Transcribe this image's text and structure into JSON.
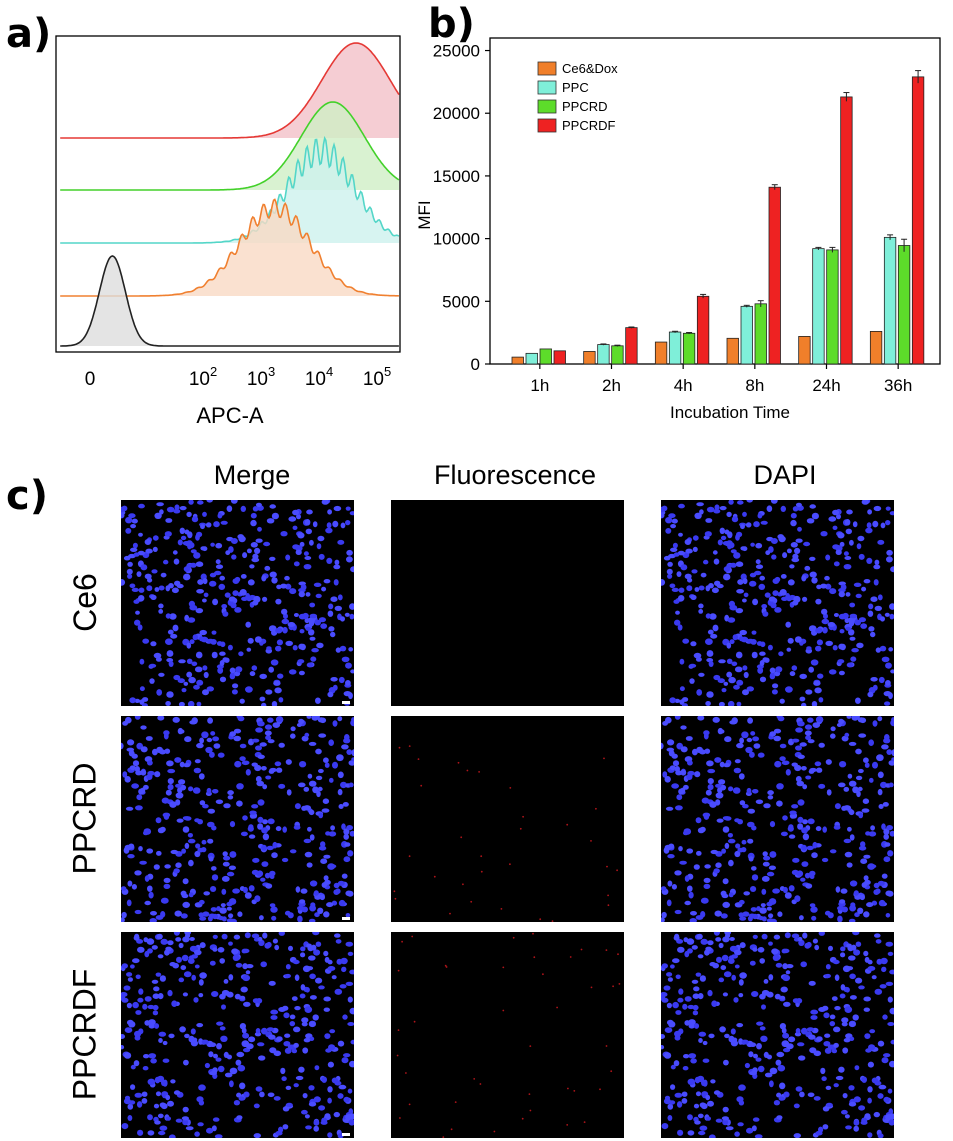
{
  "panel_a": {
    "label": "a)",
    "xlabel": "APC-A",
    "tick_labels": [
      "0",
      "10",
      "10",
      "10",
      "10"
    ],
    "tick_superscripts": [
      "",
      "2",
      "3",
      "4",
      "5"
    ],
    "histograms": [
      {
        "color": "#e53935",
        "fill": "#f3c0c8",
        "peak_log": 4.5
      },
      {
        "color": "#43d12a",
        "fill": "#cfefc6",
        "peak_log": 4.1
      },
      {
        "color": "#54d6c8",
        "fill": "#cdf1ed",
        "peak_log": 3.9
      },
      {
        "color": "#f08030",
        "fill": "#f9d9c4",
        "peak_log": 3.1
      },
      {
        "color": "#222222",
        "fill": "#dddddd",
        "peak_log": 0.3
      }
    ]
  },
  "panel_b": {
    "label": "b)"
  },
  "chart_data": {
    "type": "bar",
    "xlabel": "Incubation Time",
    "ylabel": "MFI",
    "ylim": [
      0,
      26000
    ],
    "yticks": [
      0,
      5000,
      10000,
      15000,
      20000,
      25000
    ],
    "categories": [
      "1h",
      "2h",
      "4h",
      "8h",
      "24h",
      "36h"
    ],
    "legend_position": "top-left",
    "series": [
      {
        "name": "Ce6&Dox",
        "color": "#f07f2a",
        "values": [
          550,
          1000,
          1750,
          2050,
          2200,
          2600
        ]
      },
      {
        "name": "PPC",
        "color": "#7fefd9",
        "values": [
          850,
          1550,
          2550,
          4600,
          9200,
          10100
        ]
      },
      {
        "name": "PPCRD",
        "color": "#5ddc2a",
        "values": [
          1200,
          1450,
          2450,
          4800,
          9100,
          9450
        ]
      },
      {
        "name": "PPCRDF",
        "color": "#ee2222",
        "values": [
          1050,
          2900,
          5400,
          14100,
          21300,
          22900
        ]
      }
    ],
    "errors": [
      [
        0,
        0,
        0,
        0,
        0,
        0
      ],
      [
        0,
        50,
        60,
        80,
        100,
        200
      ],
      [
        0,
        50,
        60,
        250,
        200,
        500
      ],
      [
        0,
        50,
        150,
        200,
        350,
        500
      ]
    ]
  },
  "panel_c": {
    "label": "c)",
    "columns": [
      "Merge",
      "Fluorescence",
      "DAPI"
    ],
    "rows": [
      "Ce6",
      "PPCRD",
      "PPCRDF"
    ]
  }
}
